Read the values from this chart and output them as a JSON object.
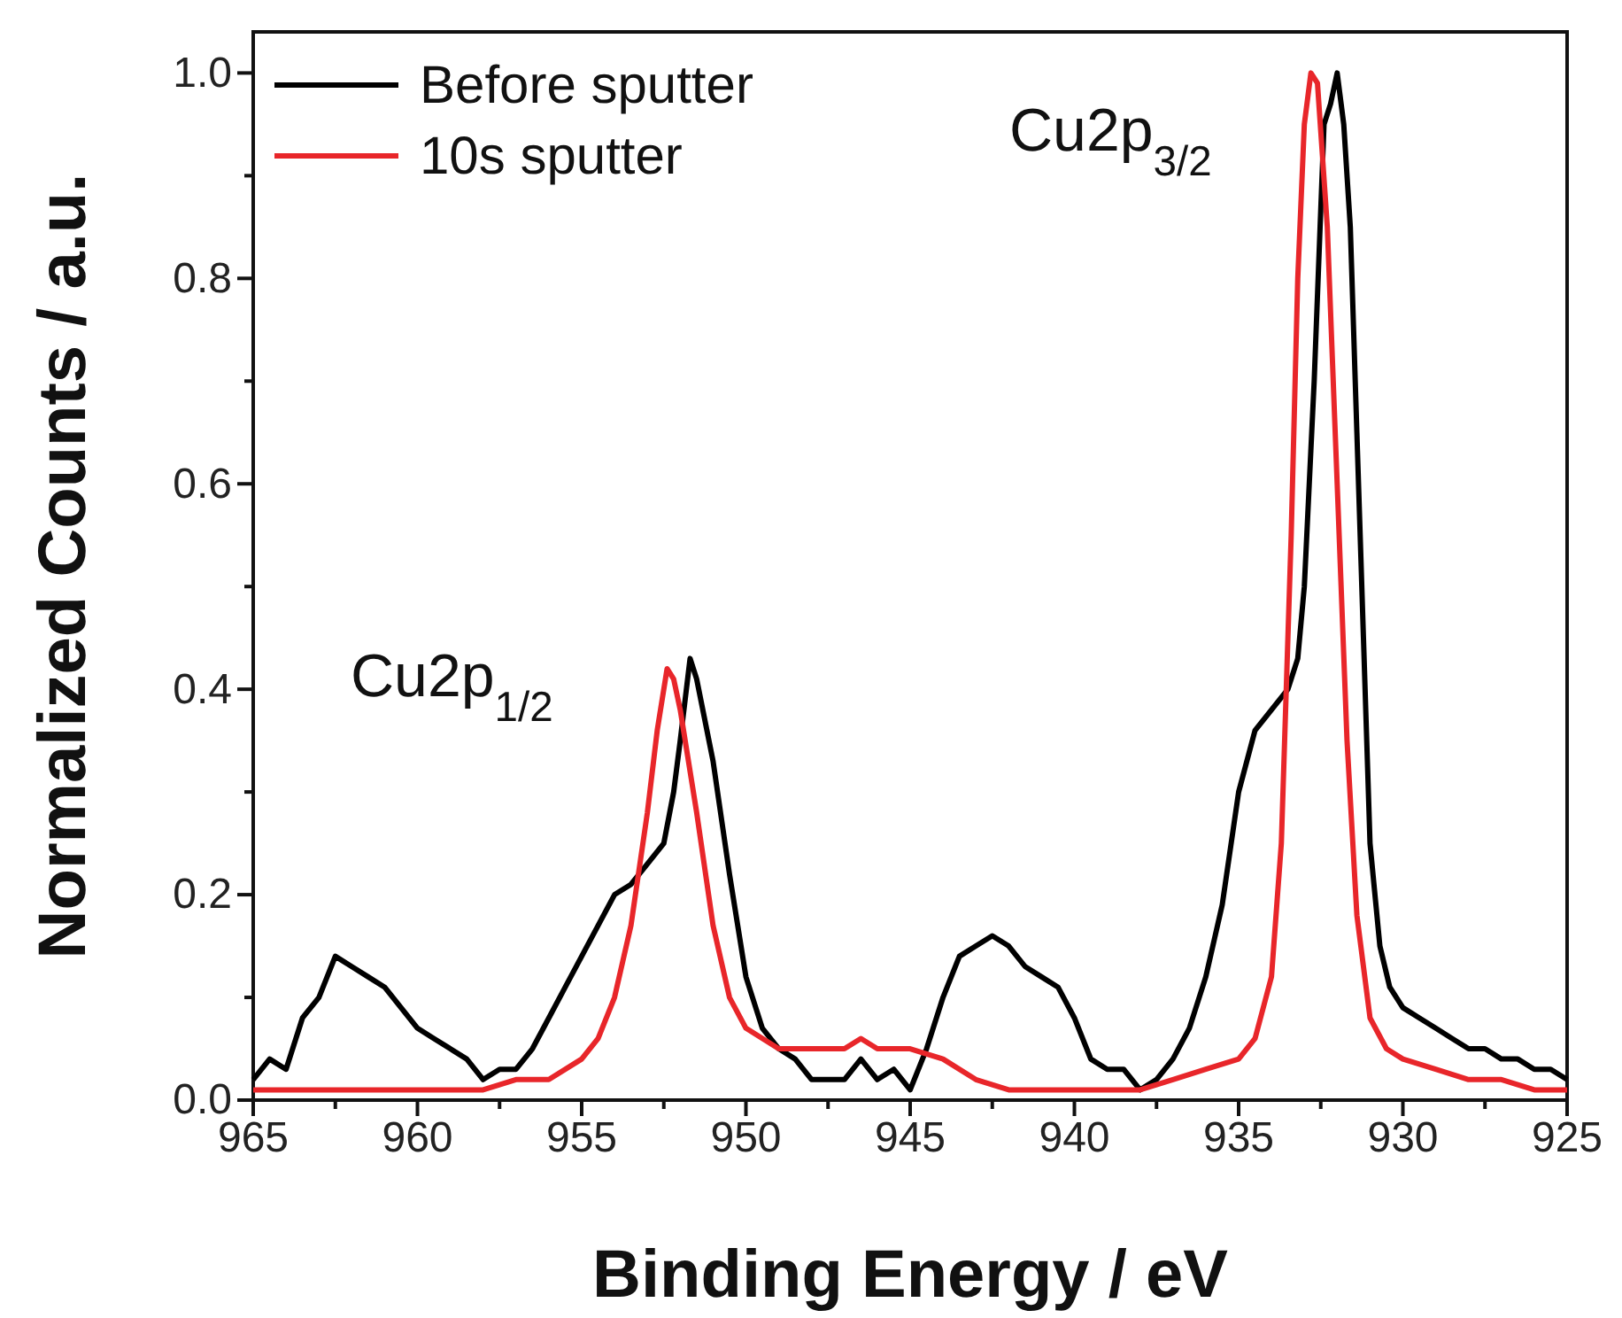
{
  "chart_data": {
    "type": "line",
    "xlabel": "Binding Energy / eV",
    "ylabel": "Normalized Counts / a.u.",
    "xlim": [
      965,
      925
    ],
    "ylim": [
      0,
      1.04
    ],
    "xticks": [
      965,
      {
        "value": 962.5,
        "label": null
      },
      960,
      {
        "value": 957.5,
        "label": null
      },
      955,
      {
        "value": 952.5,
        "label": null
      },
      950,
      {
        "value": 947.5,
        "label": null
      },
      945,
      {
        "value": 942.5,
        "label": null
      },
      940,
      {
        "value": 937.5,
        "label": null
      },
      935,
      {
        "value": 932.5,
        "label": null
      },
      930,
      {
        "value": 927.5,
        "label": null
      },
      925
    ],
    "yticks": [
      {
        "value": 0,
        "label": "0.0"
      },
      {
        "value": 0.1,
        "label": null
      },
      0.2,
      {
        "value": 0.3,
        "label": null
      },
      0.4,
      {
        "value": 0.5,
        "label": null
      },
      0.6,
      {
        "value": 0.7,
        "label": null
      },
      0.8,
      {
        "value": 0.9,
        "label": null
      },
      {
        "value": 1,
        "label": "1.0"
      }
    ],
    "grid": false,
    "legend": "top left",
    "line_style": "solid",
    "marker": "none",
    "annotations": [
      "Cu2p$_{1/2}$",
      "Cu2p$_{3/2}$"
    ],
    "series": [
      {
        "name": "Before sputter",
        "color": "#000000",
        "x": [
          965,
          964.5,
          964,
          963.5,
          963,
          962.5,
          962,
          961.5,
          961,
          960.5,
          960,
          959.5,
          959,
          958.5,
          958,
          957.5,
          957,
          956.5,
          956,
          955.5,
          955,
          954.5,
          954,
          953.5,
          953,
          952.5,
          952.2,
          952,
          951.7,
          951.5,
          951,
          950.5,
          950,
          949.5,
          949,
          948.5,
          948,
          947,
          946.5,
          946,
          945.5,
          945,
          944.5,
          944,
          943.5,
          943,
          942.5,
          942,
          941.5,
          941,
          940.5,
          940,
          939.5,
          939,
          938.5,
          938,
          937.5,
          937,
          936.5,
          936,
          935.5,
          935,
          934.5,
          934,
          933.5,
          933.2,
          933,
          932.7,
          932.4,
          932.2,
          932,
          931.8,
          931.6,
          931.4,
          931.2,
          931,
          930.7,
          930.4,
          930,
          929.5,
          929,
          928.5,
          928,
          927.5,
          927,
          926.5,
          926,
          925.5,
          925
        ],
        "values": [
          0.02,
          0.04,
          0.03,
          0.08,
          0.1,
          0.14,
          0.13,
          0.12,
          0.11,
          0.09,
          0.07,
          0.06,
          0.05,
          0.04,
          0.02,
          0.03,
          0.03,
          0.05,
          0.08,
          0.11,
          0.14,
          0.17,
          0.2,
          0.21,
          0.23,
          0.25,
          0.3,
          0.35,
          0.43,
          0.41,
          0.33,
          0.22,
          0.12,
          0.07,
          0.05,
          0.04,
          0.02,
          0.02,
          0.04,
          0.02,
          0.03,
          0.01,
          0.05,
          0.1,
          0.14,
          0.15,
          0.16,
          0.15,
          0.13,
          0.12,
          0.11,
          0.08,
          0.04,
          0.03,
          0.03,
          0.01,
          0.02,
          0.04,
          0.07,
          0.12,
          0.19,
          0.3,
          0.36,
          0.38,
          0.4,
          0.43,
          0.5,
          0.7,
          0.95,
          0.97,
          1.0,
          0.95,
          0.85,
          0.65,
          0.45,
          0.25,
          0.15,
          0.11,
          0.09,
          0.08,
          0.07,
          0.06,
          0.05,
          0.05,
          0.04,
          0.04,
          0.03,
          0.03,
          0.02
        ]
      },
      {
        "name": "10s sputter",
        "color": "#e8262a",
        "x": [
          965,
          960,
          958,
          957,
          956,
          955,
          954.5,
          954,
          953.5,
          953,
          952.7,
          952.4,
          952.2,
          952,
          951.5,
          951,
          950.5,
          950,
          949,
          948,
          947,
          946.5,
          946,
          945,
          944,
          943,
          942,
          941,
          940,
          939,
          938,
          937,
          936,
          935,
          934.5,
          934,
          933.7,
          933.4,
          933.2,
          933,
          932.8,
          932.6,
          932.3,
          932,
          931.7,
          931.4,
          931,
          930.5,
          930,
          929,
          928,
          927,
          926,
          925
        ],
        "values": [
          0.01,
          0.01,
          0.01,
          0.02,
          0.02,
          0.04,
          0.06,
          0.1,
          0.17,
          0.28,
          0.36,
          0.42,
          0.41,
          0.38,
          0.28,
          0.17,
          0.1,
          0.07,
          0.05,
          0.05,
          0.05,
          0.06,
          0.05,
          0.05,
          0.04,
          0.02,
          0.01,
          0.01,
          0.01,
          0.01,
          0.01,
          0.02,
          0.03,
          0.04,
          0.06,
          0.12,
          0.25,
          0.55,
          0.8,
          0.95,
          1.0,
          0.99,
          0.85,
          0.6,
          0.35,
          0.18,
          0.08,
          0.05,
          0.04,
          0.03,
          0.02,
          0.02,
          0.01,
          0.01
        ]
      }
    ]
  }
}
